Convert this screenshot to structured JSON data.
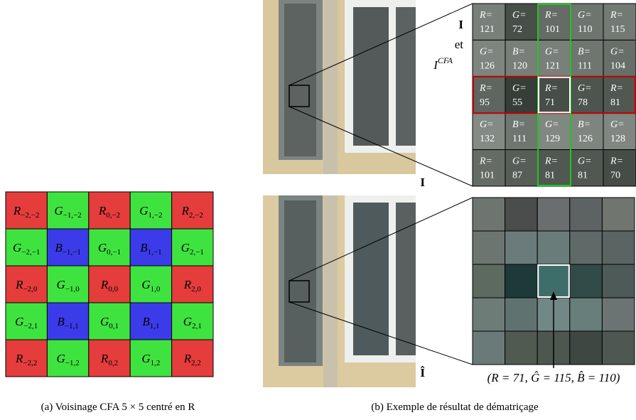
{
  "cfa_grid": {
    "rows": [
      [
        {
          "letter": "R",
          "sub": "−2,−2"
        },
        {
          "letter": "G",
          "sub": "−1,−2"
        },
        {
          "letter": "R",
          "sub": "0,−2"
        },
        {
          "letter": "G",
          "sub": "1,−2"
        },
        {
          "letter": "R",
          "sub": "2,−2"
        }
      ],
      [
        {
          "letter": "G",
          "sub": "−2,−1"
        },
        {
          "letter": "B",
          "sub": "−1,−1"
        },
        {
          "letter": "G",
          "sub": "0,−1"
        },
        {
          "letter": "B",
          "sub": "1,−1"
        },
        {
          "letter": "G",
          "sub": "2,−1"
        }
      ],
      [
        {
          "letter": "R",
          "sub": "−2,0"
        },
        {
          "letter": "G",
          "sub": "−1,0"
        },
        {
          "letter": "R",
          "sub": "0,0"
        },
        {
          "letter": "G",
          "sub": "1,0"
        },
        {
          "letter": "R",
          "sub": "2,0"
        }
      ],
      [
        {
          "letter": "G",
          "sub": "−2,1"
        },
        {
          "letter": "B",
          "sub": "−1,1"
        },
        {
          "letter": "G",
          "sub": "0,1"
        },
        {
          "letter": "B",
          "sub": "1,1"
        },
        {
          "letter": "G",
          "sub": "2,1"
        }
      ],
      [
        {
          "letter": "R",
          "sub": "−2,2"
        },
        {
          "letter": "G",
          "sub": "−1,2"
        },
        {
          "letter": "R",
          "sub": "0,2"
        },
        {
          "letter": "G",
          "sub": "1,2"
        },
        {
          "letter": "R",
          "sub": "2,2"
        }
      ]
    ],
    "colors": {
      "R": "#e53c3c",
      "G": "#3fe33f",
      "B": "#3b3bea"
    },
    "caption": "(a) Voisinage CFA 5 × 5 centré en R"
  },
  "cfa_zoom": {
    "rows": [
      [
        {
          "label": "R=",
          "value": 121
        },
        {
          "label": "G=",
          "value": 72
        },
        {
          "label": "R=",
          "value": 101
        },
        {
          "label": "G=",
          "value": 110
        },
        {
          "label": "R=",
          "value": 115
        }
      ],
      [
        {
          "label": "G=",
          "value": 126
        },
        {
          "label": "B=",
          "value": 120
        },
        {
          "label": "G=",
          "value": 121
        },
        {
          "label": "B=",
          "value": 111
        },
        {
          "label": "G=",
          "value": 104
        }
      ],
      [
        {
          "label": "R=",
          "value": 95
        },
        {
          "label": "G=",
          "value": 55
        },
        {
          "label": "R=",
          "value": 71
        },
        {
          "label": "G=",
          "value": 78
        },
        {
          "label": "R=",
          "value": 81
        }
      ],
      [
        {
          "label": "G=",
          "value": 132
        },
        {
          "label": "B=",
          "value": 111
        },
        {
          "label": "G=",
          "value": 129
        },
        {
          "label": "B=",
          "value": 126
        },
        {
          "label": "G=",
          "value": 128
        }
      ],
      [
        {
          "label": "R=",
          "value": 101
        },
        {
          "label": "G=",
          "value": 87
        },
        {
          "label": "R=",
          "value": 81
        },
        {
          "label": "G=",
          "value": 81
        },
        {
          "label": "R=",
          "value": 70
        }
      ]
    ],
    "side_labels": [
      "I",
      "et",
      "I",
      "CFA"
    ]
  },
  "result_zoom": {
    "colors": [
      [
        "#6e7570",
        "#4a4d4c",
        "#6a6e6e",
        "#5d6262",
        "#707570"
      ],
      [
        "#6c7570",
        "#6b7a7a",
        "#6a7c7a",
        "#5f6a68",
        "#5a6462"
      ],
      [
        "#5c6a60",
        "#1e3a38",
        "#3f6e6a",
        "#324a48",
        "#4e5a58"
      ],
      [
        "#6e7c78",
        "#5f7270",
        "#728886",
        "#687e7a",
        "#6b7472"
      ],
      [
        "#6a7a78",
        "#505a50",
        "#4e5650",
        "#3f4742",
        "#4f5752"
      ]
    ],
    "label_top": "I",
    "label_bottom": "Î",
    "annotation": "(R = 71, Ĝ = 115, B̂ = 110)"
  },
  "caption_b": "(b) Exemple de résultat de dématriçage"
}
